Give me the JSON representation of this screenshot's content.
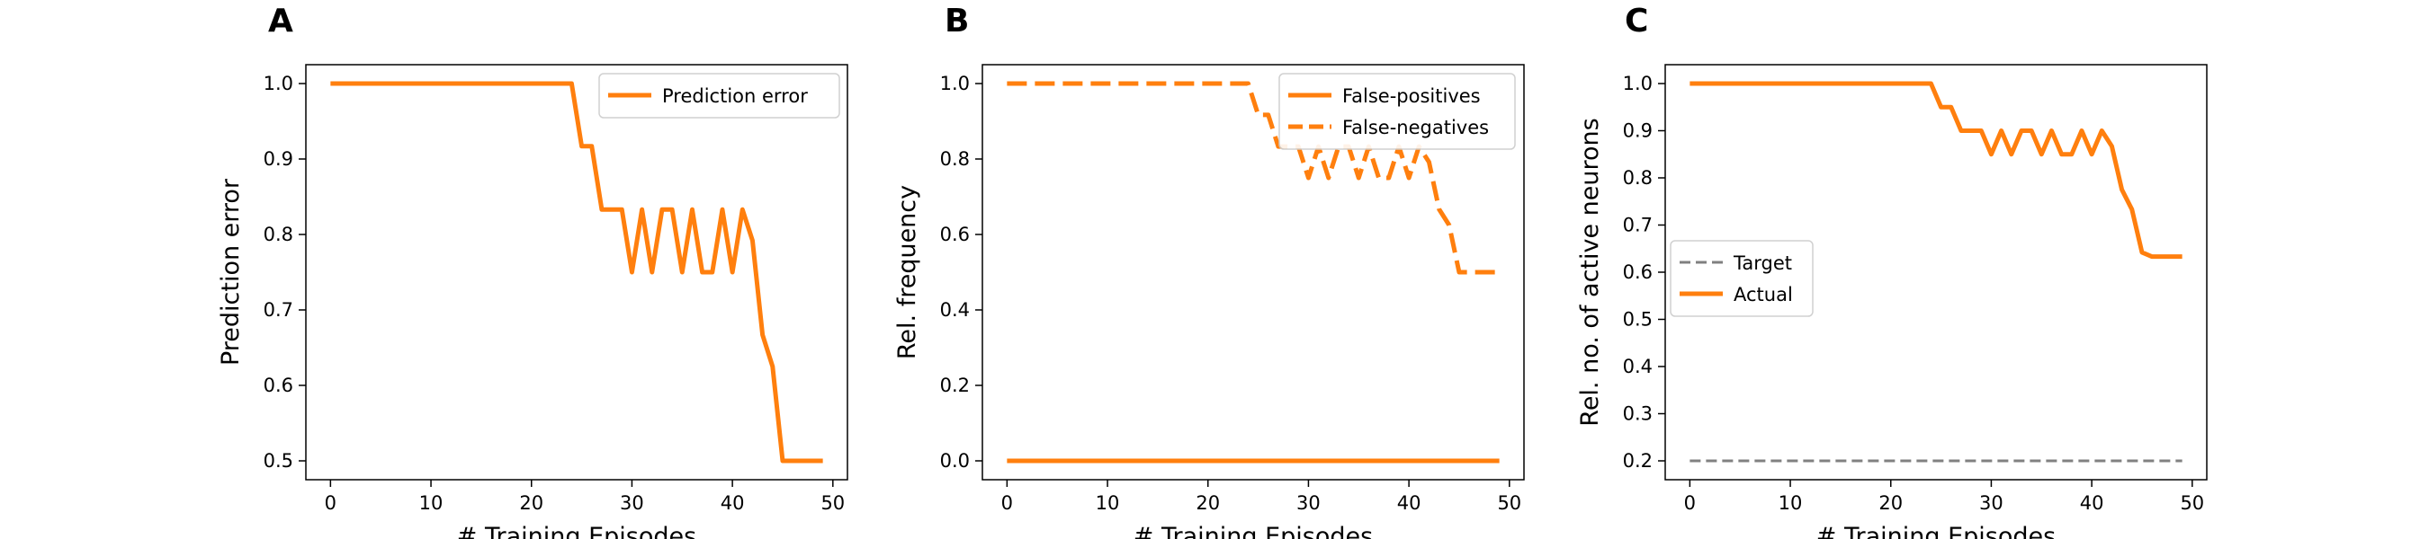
{
  "colors": {
    "orange": "#ff7f0e",
    "gray": "#808080",
    "axis": "#000000"
  },
  "chart_data": [
    {
      "panel": "A",
      "type": "line",
      "xlabel": "# Training Episodes",
      "ylabel": "Prediction error",
      "xlim": [
        -2.45,
        51.45
      ],
      "ylim": [
        0.475,
        1.025
      ],
      "xticks": [
        0,
        10,
        20,
        30,
        40,
        50
      ],
      "yticks": [
        0.5,
        0.6,
        0.7,
        0.8,
        0.9,
        1.0
      ],
      "ytick_labels": [
        "0.5",
        "0.6",
        "0.7",
        "0.8",
        "0.9",
        "1.0"
      ],
      "legend_position": "upper right",
      "series": [
        {
          "name": "Prediction error",
          "style": "solid",
          "color": "#ff7f0e",
          "x": [
            0,
            1,
            2,
            3,
            4,
            5,
            6,
            7,
            8,
            9,
            10,
            11,
            12,
            13,
            14,
            15,
            16,
            17,
            18,
            19,
            20,
            21,
            22,
            23,
            24,
            25,
            26,
            27,
            28,
            29,
            30,
            31,
            32,
            33,
            34,
            35,
            36,
            37,
            38,
            39,
            40,
            41,
            42,
            43,
            44,
            45,
            46,
            47,
            48,
            49
          ],
          "y": [
            1,
            1,
            1,
            1,
            1,
            1,
            1,
            1,
            1,
            1,
            1,
            1,
            1,
            1,
            1,
            1,
            1,
            1,
            1,
            1,
            1,
            1,
            1,
            1,
            1,
            0.917,
            0.917,
            0.833,
            0.833,
            0.833,
            0.75,
            0.833,
            0.75,
            0.833,
            0.833,
            0.75,
            0.833,
            0.75,
            0.75,
            0.833,
            0.75,
            0.833,
            0.792,
            0.667,
            0.625,
            0.5,
            0.5,
            0.5,
            0.5,
            0.5
          ]
        }
      ]
    },
    {
      "panel": "B",
      "type": "line",
      "xlabel": "# Training Episodes",
      "ylabel": "Rel. frequency",
      "xlim": [
        -2.45,
        51.45
      ],
      "ylim": [
        -0.05,
        1.05
      ],
      "xticks": [
        0,
        10,
        20,
        30,
        40,
        50
      ],
      "yticks": [
        0.0,
        0.2,
        0.4,
        0.6,
        0.8,
        1.0
      ],
      "ytick_labels": [
        "0.0",
        "0.2",
        "0.4",
        "0.6",
        "0.8",
        "1.0"
      ],
      "legend_position": "upper right",
      "series": [
        {
          "name": "False-positives",
          "style": "solid",
          "color": "#ff7f0e",
          "x": [
            0,
            1,
            2,
            3,
            4,
            5,
            6,
            7,
            8,
            9,
            10,
            11,
            12,
            13,
            14,
            15,
            16,
            17,
            18,
            19,
            20,
            21,
            22,
            23,
            24,
            25,
            26,
            27,
            28,
            29,
            30,
            31,
            32,
            33,
            34,
            35,
            36,
            37,
            38,
            39,
            40,
            41,
            42,
            43,
            44,
            45,
            46,
            47,
            48,
            49
          ],
          "y": [
            0,
            0,
            0,
            0,
            0,
            0,
            0,
            0,
            0,
            0,
            0,
            0,
            0,
            0,
            0,
            0,
            0,
            0,
            0,
            0,
            0,
            0,
            0,
            0,
            0,
            0,
            0,
            0,
            0,
            0,
            0,
            0,
            0,
            0,
            0,
            0,
            0,
            0,
            0,
            0,
            0,
            0,
            0,
            0,
            0,
            0,
            0,
            0,
            0,
            0
          ]
        },
        {
          "name": "False-negatives",
          "style": "dashed",
          "color": "#ff7f0e",
          "x": [
            0,
            1,
            2,
            3,
            4,
            5,
            6,
            7,
            8,
            9,
            10,
            11,
            12,
            13,
            14,
            15,
            16,
            17,
            18,
            19,
            20,
            21,
            22,
            23,
            24,
            25,
            26,
            27,
            28,
            29,
            30,
            31,
            32,
            33,
            34,
            35,
            36,
            37,
            38,
            39,
            40,
            41,
            42,
            43,
            44,
            45,
            46,
            47,
            48,
            49
          ],
          "y": [
            1,
            1,
            1,
            1,
            1,
            1,
            1,
            1,
            1,
            1,
            1,
            1,
            1,
            1,
            1,
            1,
            1,
            1,
            1,
            1,
            1,
            1,
            1,
            1,
            1,
            0.917,
            0.917,
            0.833,
            0.833,
            0.833,
            0.75,
            0.833,
            0.75,
            0.833,
            0.833,
            0.75,
            0.833,
            0.75,
            0.75,
            0.833,
            0.75,
            0.833,
            0.792,
            0.667,
            0.625,
            0.5,
            0.5,
            0.5,
            0.5,
            0.5
          ]
        }
      ]
    },
    {
      "panel": "C",
      "type": "line",
      "xlabel": "# Training Episodes",
      "ylabel": "Rel. no. of active neurons",
      "xlim": [
        -2.45,
        51.45
      ],
      "ylim": [
        0.16,
        1.04
      ],
      "xticks": [
        0,
        10,
        20,
        30,
        40,
        50
      ],
      "yticks": [
        0.2,
        0.3,
        0.4,
        0.5,
        0.6,
        0.7,
        0.8,
        0.9,
        1.0
      ],
      "ytick_labels": [
        "0.2",
        "0.3",
        "0.4",
        "0.5",
        "0.6",
        "0.7",
        "0.8",
        "0.9",
        "1.0"
      ],
      "legend_position": "center left",
      "series": [
        {
          "name": "Target",
          "style": "dashed",
          "color": "#808080",
          "x": [
            0,
            49
          ],
          "y": [
            0.2,
            0.2
          ]
        },
        {
          "name": "Actual",
          "style": "solid",
          "color": "#ff7f0e",
          "x": [
            0,
            1,
            2,
            3,
            4,
            5,
            6,
            7,
            8,
            9,
            10,
            11,
            12,
            13,
            14,
            15,
            16,
            17,
            18,
            19,
            20,
            21,
            22,
            23,
            24,
            25,
            26,
            27,
            28,
            29,
            30,
            31,
            32,
            33,
            34,
            35,
            36,
            37,
            38,
            39,
            40,
            41,
            42,
            43,
            44,
            45,
            46,
            47,
            48,
            49
          ],
          "y": [
            1,
            1,
            1,
            1,
            1,
            1,
            1,
            1,
            1,
            1,
            1,
            1,
            1,
            1,
            1,
            1,
            1,
            1,
            1,
            1,
            1,
            1,
            1,
            1,
            1,
            0.95,
            0.95,
            0.9,
            0.9,
            0.9,
            0.85,
            0.9,
            0.85,
            0.9,
            0.9,
            0.85,
            0.9,
            0.85,
            0.85,
            0.9,
            0.85,
            0.9,
            0.867,
            0.775,
            0.733,
            0.642,
            0.633,
            0.633,
            0.633,
            0.633
          ]
        }
      ]
    }
  ]
}
